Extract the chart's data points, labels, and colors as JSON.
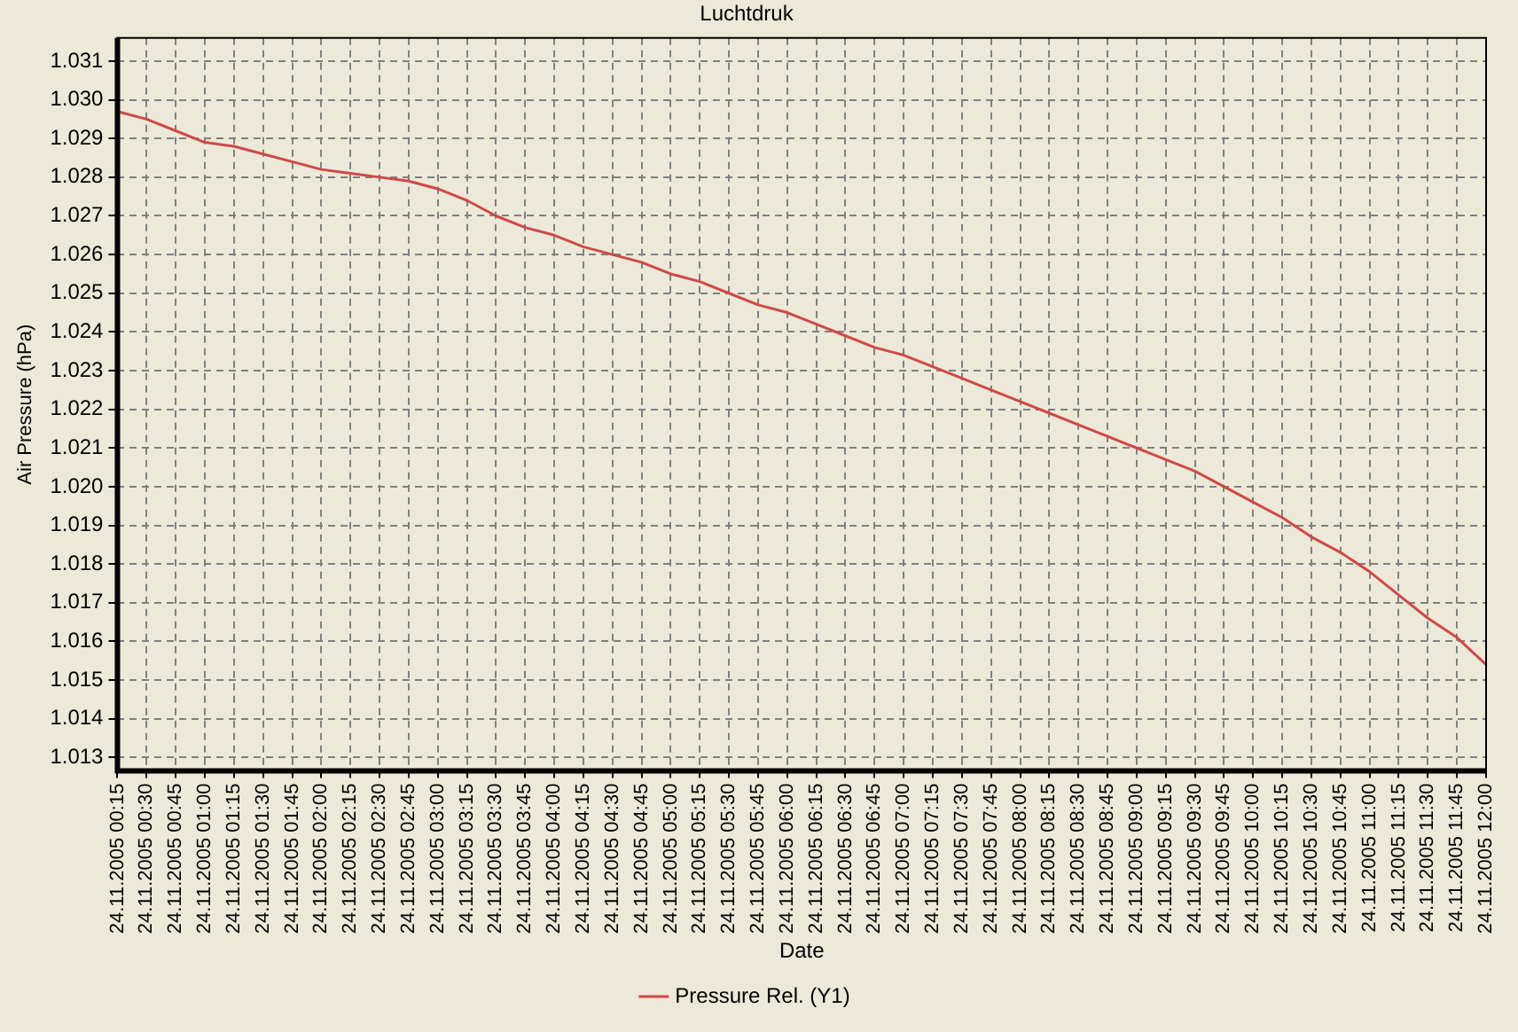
{
  "chart_data": {
    "type": "line",
    "title": "Luchtdruk",
    "xlabel": "Date",
    "ylabel": "Air Pressure (hPa)",
    "categories": [
      "24.11.2005 00:15",
      "24.11.2005 00:30",
      "24.11.2005 00:45",
      "24.11.2005 01:00",
      "24.11.2005 01:15",
      "24.11.2005 01:30",
      "24.11.2005 01:45",
      "24.11.2005 02:00",
      "24.11.2005 02:15",
      "24.11.2005 02:30",
      "24.11.2005 02:45",
      "24.11.2005 03:00",
      "24.11.2005 03:15",
      "24.11.2005 03:30",
      "24.11.2005 03:45",
      "24.11.2005 04:00",
      "24.11.2005 04:15",
      "24.11.2005 04:30",
      "24.11.2005 04:45",
      "24.11.2005 05:00",
      "24.11.2005 05:15",
      "24.11.2005 05:30",
      "24.11.2005 05:45",
      "24.11.2005 06:00",
      "24.11.2005 06:15",
      "24.11.2005 06:30",
      "24.11.2005 06:45",
      "24.11.2005 07:00",
      "24.11.2005 07:15",
      "24.11.2005 07:30",
      "24.11.2005 07:45",
      "24.11.2005 08:00",
      "24.11.2005 08:15",
      "24.11.2005 08:30",
      "24.11.2005 08:45",
      "24.11.2005 09:00",
      "24.11.2005 09:15",
      "24.11.2005 09:30",
      "24.11.2005 09:45",
      "24.11.2005 10:00",
      "24.11.2005 10:15",
      "24.11.2005 10:30",
      "24.11.2005 10:45",
      "24.11.2005 11:00",
      "24.11.2005 11:15",
      "24.11.2005 11:30",
      "24.11.2005 11:45",
      "24.11.2005 12:00"
    ],
    "series": [
      {
        "name": "Pressure Rel. (Y1)",
        "color": "#d04848",
        "values": [
          1.0297,
          1.0295,
          1.0292,
          1.0289,
          1.0288,
          1.0286,
          1.0284,
          1.0282,
          1.0281,
          1.028,
          1.0279,
          1.0277,
          1.0274,
          1.027,
          1.0267,
          1.0265,
          1.0262,
          1.026,
          1.0258,
          1.0255,
          1.0253,
          1.025,
          1.0247,
          1.0245,
          1.0242,
          1.0239,
          1.0236,
          1.0234,
          1.0231,
          1.0228,
          1.0225,
          1.0222,
          1.0219,
          1.0216,
          1.0213,
          1.021,
          1.0207,
          1.0204,
          1.02,
          1.0196,
          1.0192,
          1.0187,
          1.0183,
          1.0178,
          1.0172,
          1.0166,
          1.0161,
          1.0154
        ]
      }
    ],
    "ylim": [
      1.01265,
      1.0316
    ],
    "yticks": [
      1.013,
      1.014,
      1.015,
      1.016,
      1.017,
      1.018,
      1.019,
      {
        "value": 1.02,
        "label": "1.020"
      },
      1.021,
      1.022,
      1.023,
      1.024,
      1.025,
      1.026,
      1.027,
      1.028,
      1.029,
      {
        "value": 1.03,
        "label": "1.030"
      },
      1.031
    ],
    "grid": true,
    "legend": "bottom",
    "marker": "none",
    "line_style": "solid"
  }
}
